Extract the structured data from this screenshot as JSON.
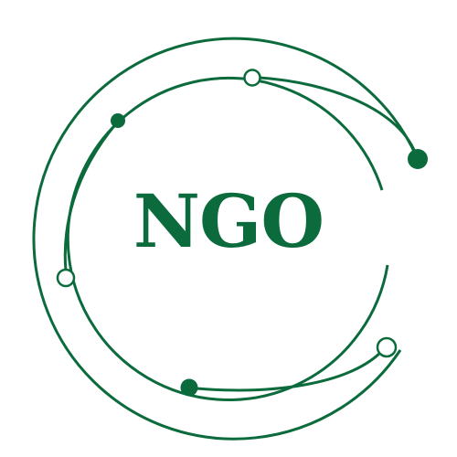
{
  "logo": {
    "text": "NGO",
    "color": "#0c6b3c",
    "background": "#ffffff"
  }
}
